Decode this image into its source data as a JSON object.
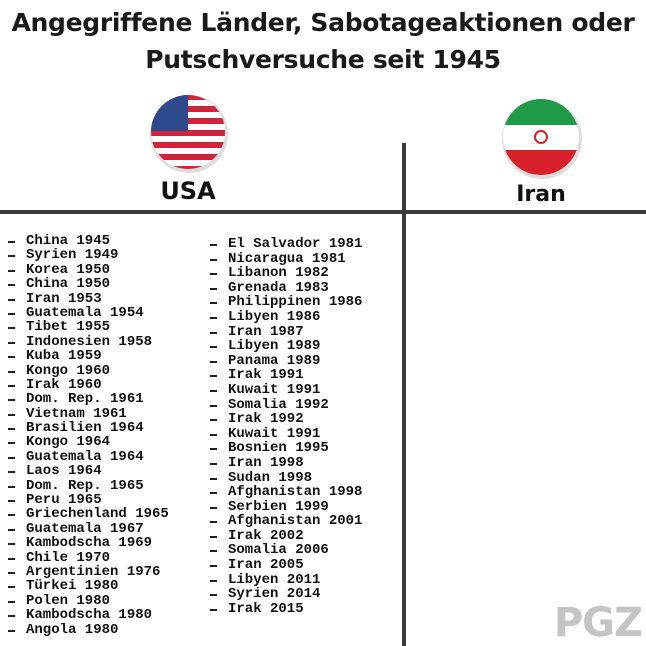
{
  "title_lines": [
    "Angegriffene Länder, Sabotageaktionen oder",
    "Putschversuche seit 1945"
  ],
  "columns": [
    {
      "label": "USA",
      "items_left": [
        "China 1945",
        "Syrien 1949",
        "Korea 1950",
        "China 1950",
        "Iran 1953",
        "Guatemala 1954",
        "Tibet 1955",
        "Indonesien 1958",
        "Kuba 1959",
        "Kongo 1960",
        "Irak 1960",
        "Dom. Rep. 1961",
        "Vietnam 1961",
        "Brasilien 1964",
        "Kongo 1964",
        "Guatemala 1964",
        "Laos 1964",
        "Dom. Rep. 1965",
        "Peru 1965",
        "Griechenland 1965",
        "Guatemala 1967",
        "Kambodscha 1969",
        "Chile 1970",
        "Argentinien 1976",
        "Türkei 1980",
        "Polen 1980",
        "Kambodscha 1980",
        "Angola 1980"
      ],
      "items_right": [
        "El Salvador 1981",
        "Nicaragua 1981",
        "Libanon 1982",
        "Grenada 1983",
        "Philippinen 1986",
        "Libyen 1986",
        "Iran 1987",
        "Libyen 1989",
        "Panama 1989",
        "Irak 1991",
        "Kuwait 1991",
        "Somalia 1992",
        "Irak 1992",
        "Kuwait 1991",
        "Bosnien 1995",
        "Iran 1998",
        "Sudan 1998",
        "Afghanistan 1998",
        "Serbien 1999",
        "Afghanistan 2001",
        "Irak 2002",
        "Somalia 2006",
        "Iran 2005",
        "Libyen 2011",
        "Syrien 2014",
        "Irak 2015"
      ]
    },
    {
      "label": "Iran"
    }
  ],
  "watermark": "PGZ"
}
